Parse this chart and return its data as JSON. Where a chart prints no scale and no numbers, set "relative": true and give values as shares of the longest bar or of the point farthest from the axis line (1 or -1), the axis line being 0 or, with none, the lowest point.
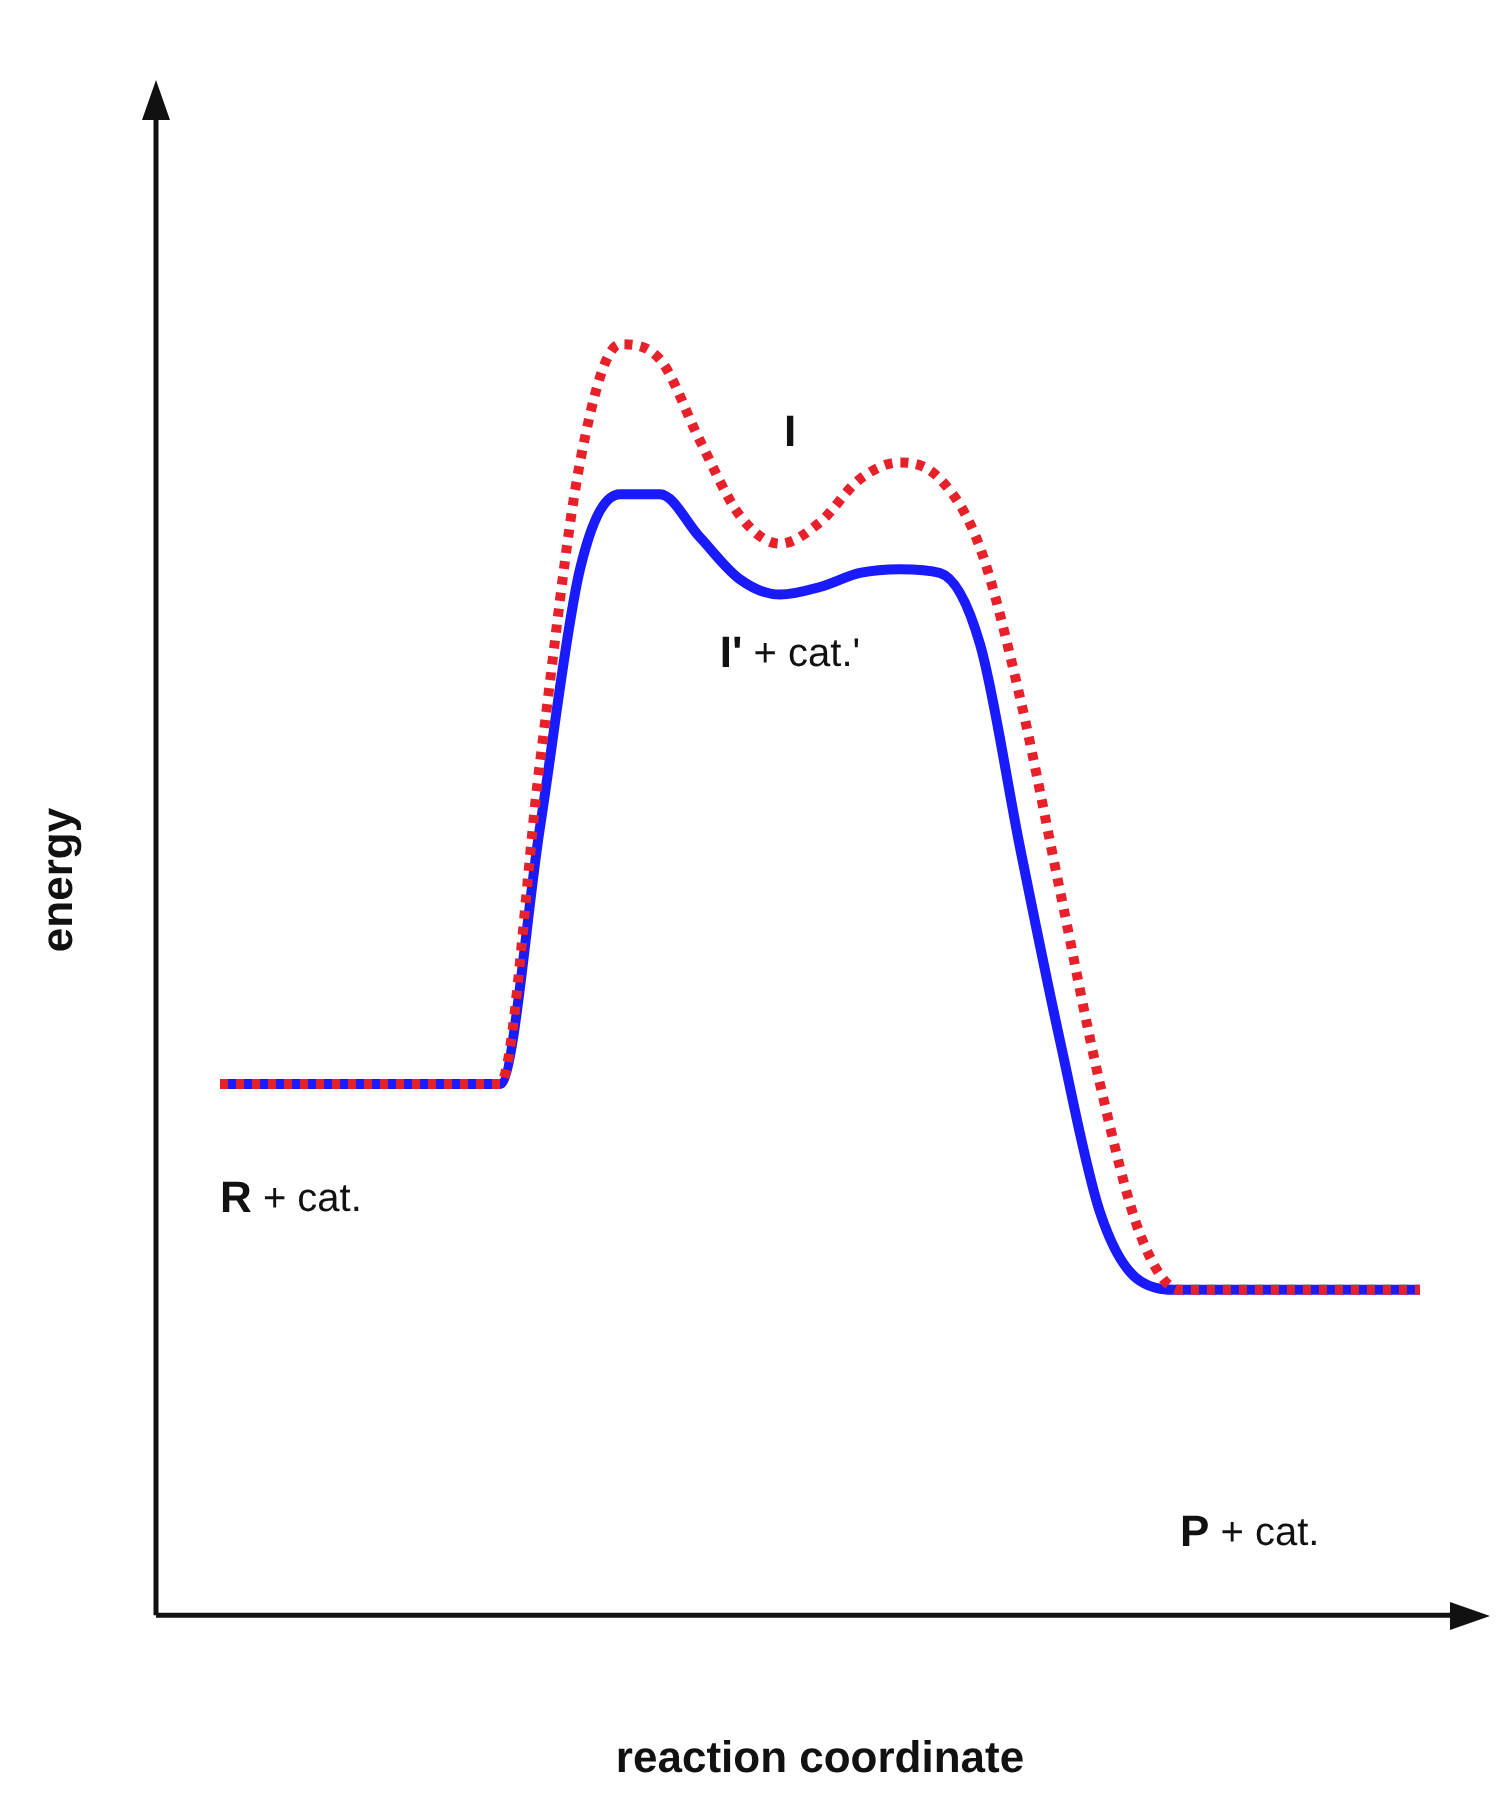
{
  "chart_data": {
    "type": "line",
    "relative": true,
    "xlabel": "reaction coordinate",
    "ylabel": "energy",
    "categories": [
      null,
      null,
      null,
      null,
      null,
      null,
      null,
      null,
      null,
      null,
      null,
      null,
      null,
      null,
      null,
      null,
      null,
      null,
      null,
      null,
      null,
      null,
      null,
      null,
      null,
      null,
      null,
      null,
      null,
      null,
      null
    ],
    "series": [
      {
        "color": "#e8202a",
        "line_style": "dotted",
        "values": [
          0.418,
          0.418,
          0.418,
          0.418,
          0.418,
          0.418,
          0.418,
          0.418,
          0.671,
          0.907,
          1.0,
          0.988,
          0.924,
          0.865,
          0.843,
          0.86,
          0.894,
          0.907,
          0.894,
          0.84,
          0.722,
          0.57,
          0.418,
          0.3,
          0.256,
          0.256,
          0.256,
          0.256,
          0.256,
          0.256,
          0.256
        ]
      },
      {
        "color": "#1a1aff",
        "line_style": "solid",
        "values": [
          0.418,
          0.418,
          0.418,
          0.418,
          0.418,
          0.418,
          0.418,
          0.418,
          0.62,
          0.823,
          0.882,
          0.882,
          0.848,
          0.815,
          0.803,
          0.809,
          0.82,
          0.823,
          0.82,
          0.764,
          0.604,
          0.452,
          0.317,
          0.263,
          0.256,
          0.256,
          0.256,
          0.256,
          0.256,
          0.256,
          0.256
        ]
      }
    ],
    "annotations": [
      "I",
      "I' + cat.'",
      "R + cat.",
      "P + cat."
    ],
    "grid": false,
    "legend": false,
    "marker": "none"
  }
}
